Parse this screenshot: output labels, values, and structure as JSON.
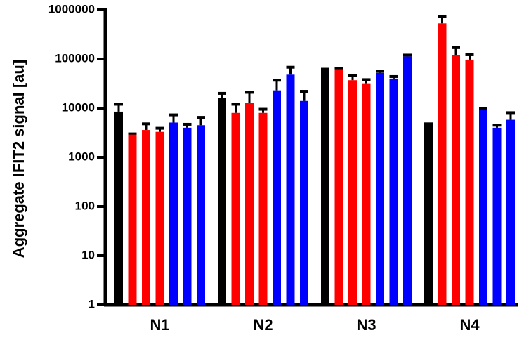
{
  "chart_data": {
    "type": "bar",
    "ylabel": "Aggregate IFIT2 signal [au]",
    "categories": [
      "N1",
      "N2",
      "N3",
      "N4"
    ],
    "log_scale": true,
    "ylim": [
      1,
      1000000
    ],
    "yticks": [
      1,
      10,
      100,
      1000,
      10000,
      100000,
      1000000
    ],
    "series": [
      {
        "color": "#000000",
        "values": [
          8500,
          16000,
          60000,
          4600
        ],
        "errors": [
          3500,
          4000,
          2000,
          200
        ]
      },
      {
        "color": "#ff0000",
        "values": [
          2900,
          8000,
          62000,
          530000
        ],
        "errors": [
          100,
          4000,
          3000,
          200000
        ]
      },
      {
        "color": "#ff0000",
        "values": [
          3600,
          13000,
          37000,
          120000
        ],
        "errors": [
          1200,
          8000,
          9000,
          50000
        ]
      },
      {
        "color": "#ff0000",
        "values": [
          3300,
          8000,
          32000,
          97000
        ],
        "errors": [
          600,
          1500,
          6000,
          25000
        ]
      },
      {
        "color": "#0000ff",
        "values": [
          5100,
          23000,
          52000,
          9200
        ],
        "errors": [
          2200,
          14000,
          4000,
          500
        ]
      },
      {
        "color": "#0000ff",
        "values": [
          4000,
          48000,
          40000,
          4000
        ],
        "errors": [
          700,
          20000,
          4000,
          500
        ]
      },
      {
        "color": "#0000ff",
        "values": [
          4500,
          14000,
          112000,
          5800
        ],
        "errors": [
          2000,
          8000,
          8000,
          2300
        ]
      }
    ]
  }
}
